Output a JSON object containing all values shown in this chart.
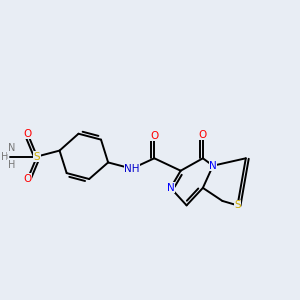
{
  "background_color": "#e8edf4",
  "bond_color": "#000000",
  "atom_colors": {
    "O": "#ff0000",
    "N": "#0000ff",
    "S": "#ccaa00",
    "S_sulfonamide": "#ccaa00",
    "H": "#777777",
    "C": "#000000"
  },
  "font_size": 7.5,
  "bond_width": 1.4
}
